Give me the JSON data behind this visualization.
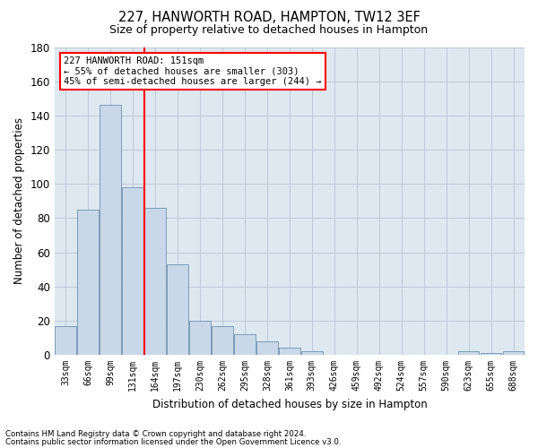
{
  "title1": "227, HANWORTH ROAD, HAMPTON, TW12 3EF",
  "title2": "Size of property relative to detached houses in Hampton",
  "xlabel": "Distribution of detached houses by size in Hampton",
  "ylabel": "Number of detached properties",
  "bins": [
    "33sqm",
    "66sqm",
    "99sqm",
    "131sqm",
    "164sqm",
    "197sqm",
    "230sqm",
    "262sqm",
    "295sqm",
    "328sqm",
    "361sqm",
    "393sqm",
    "426sqm",
    "459sqm",
    "492sqm",
    "524sqm",
    "557sqm",
    "590sqm",
    "623sqm",
    "655sqm",
    "688sqm"
  ],
  "heights": [
    17,
    85,
    146,
    98,
    86,
    53,
    20,
    17,
    12,
    8,
    4,
    2,
    0,
    0,
    0,
    0,
    0,
    0,
    2,
    1,
    2
  ],
  "bar_color": "#c8d8e8",
  "bar_edge_color": "#7090b0",
  "vline_color": "red",
  "vline_x_index": 3.5,
  "annotation_text": "227 HANWORTH ROAD: 151sqm\n← 55% of detached houses are smaller (303)\n45% of semi-detached houses are larger (244) →",
  "annotation_box_color": "white",
  "annotation_box_edge": "red",
  "grid_color": "#c0c8d8",
  "background_color": "#dde8f0",
  "ylim": [
    0,
    180
  ],
  "yticks": [
    0,
    20,
    40,
    60,
    80,
    100,
    120,
    140,
    160,
    180
  ],
  "footnote1": "Contains HM Land Registry data © Crown copyright and database right 2024.",
  "footnote2": "Contains public sector information licensed under the Open Government Licence v3.0."
}
